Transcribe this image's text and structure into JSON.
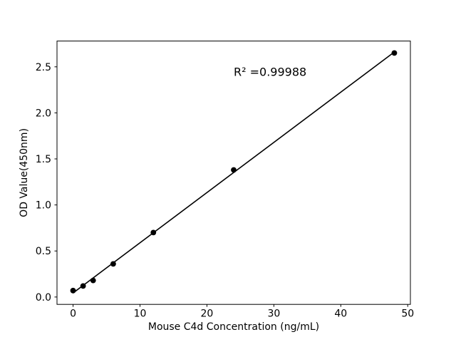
{
  "chart_data": {
    "type": "scatter",
    "title": "",
    "xlabel": "Mouse C4d Concentration (ng/mL)",
    "ylabel": "OD Value(450nm)",
    "x": [
      0,
      1.5,
      3,
      6,
      12,
      24,
      48
    ],
    "y": [
      0.07,
      0.12,
      0.18,
      0.36,
      0.7,
      1.38,
      2.65
    ],
    "fit_line": {
      "x1": 0,
      "y1": 0.044,
      "x2": 48,
      "y2": 2.661
    },
    "annotation": {
      "text": "R² =0.99988",
      "x": 24,
      "y": 2.4
    },
    "xlim": [
      -2.4,
      50.4
    ],
    "ylim": [
      -0.08,
      2.78
    ],
    "xticks": [
      0,
      10,
      20,
      30,
      40,
      50
    ],
    "xtick_labels": [
      "0",
      "10",
      "20",
      "30",
      "40",
      "50"
    ],
    "yticks": [
      0.0,
      0.5,
      1.0,
      1.5,
      2.0,
      2.5
    ],
    "ytick_labels": [
      "0.0",
      "0.5",
      "1.0",
      "1.5",
      "2.0",
      "2.5"
    ],
    "grid": false,
    "legend": null,
    "marker_color": "#000000",
    "line_color": "#000000",
    "axis_color": "#000000",
    "background": "#ffffff"
  }
}
